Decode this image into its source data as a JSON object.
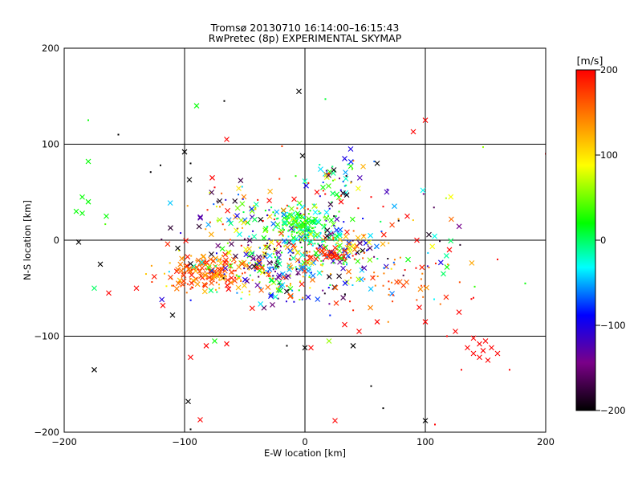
{
  "chart_data": {
    "type": "scatter",
    "title": "Tromsø 20130710 16:14:00–16:15:43",
    "subtitle": "RwPretec (8p) EXPERIMENTAL SKYMAP",
    "xlabel": "E-W location [km]",
    "ylabel": "N-S location [km]",
    "xlim": [
      -200,
      200
    ],
    "ylim": [
      -200,
      200
    ],
    "xticks": [
      -200,
      -100,
      0,
      100,
      200
    ],
    "yticks": [
      -200,
      -100,
      0,
      100,
      200
    ],
    "grid": true,
    "colorbar": {
      "label": "[m/s]",
      "range": [
        -200,
        200
      ],
      "ticks": [
        200,
        100,
        0,
        -100,
        -200
      ],
      "colormap": [
        "#000000",
        "#7a0088",
        "#0000ff",
        "#00ffff",
        "#00ff00",
        "#ffff00",
        "#ff8000",
        "#ff0000"
      ]
    },
    "markers": [
      "x",
      "dot"
    ],
    "points": [
      {
        "x": -5,
        "y": 155,
        "v": -200,
        "m": "x"
      },
      {
        "x": -90,
        "y": 140,
        "v": 20,
        "m": "x"
      },
      {
        "x": -67,
        "y": 145,
        "v": -200,
        "m": "dot"
      },
      {
        "x": 100,
        "y": 125,
        "v": 200,
        "m": "x"
      },
      {
        "x": 90,
        "y": 113,
        "v": 200,
        "m": "x"
      },
      {
        "x": 17,
        "y": 147,
        "v": 10,
        "m": "dot"
      },
      {
        "x": -180,
        "y": 125,
        "v": 20,
        "m": "dot"
      },
      {
        "x": -65,
        "y": 105,
        "v": 200,
        "m": "x"
      },
      {
        "x": -155,
        "y": 110,
        "v": -200,
        "m": "dot"
      },
      {
        "x": -100,
        "y": 92,
        "v": -200,
        "m": "x"
      },
      {
        "x": -2,
        "y": 88,
        "v": -200,
        "m": "x"
      },
      {
        "x": -180,
        "y": 82,
        "v": 20,
        "m": "x"
      },
      {
        "x": 60,
        "y": 80,
        "v": -200,
        "m": "x"
      },
      {
        "x": 38,
        "y": 95,
        "v": -100,
        "m": "x"
      },
      {
        "x": 33,
        "y": 85,
        "v": -100,
        "m": "x"
      },
      {
        "x": -95,
        "y": 80,
        "v": -200,
        "m": "dot"
      },
      {
        "x": -120,
        "y": 78,
        "v": -200,
        "m": "dot"
      },
      {
        "x": -96,
        "y": 63,
        "v": -200,
        "m": "x"
      },
      {
        "x": -77,
        "y": 65,
        "v": 200,
        "m": "x"
      },
      {
        "x": -185,
        "y": 45,
        "v": 20,
        "m": "x"
      },
      {
        "x": -180,
        "y": 40,
        "v": 20,
        "m": "x"
      },
      {
        "x": -190,
        "y": 30,
        "v": 20,
        "m": "x"
      },
      {
        "x": -185,
        "y": 28,
        "v": 20,
        "m": "x"
      },
      {
        "x": -165,
        "y": 25,
        "v": 20,
        "m": "x"
      },
      {
        "x": 98,
        "y": 52,
        "v": -30,
        "m": "x"
      },
      {
        "x": 85,
        "y": 25,
        "v": 200,
        "m": "x"
      },
      {
        "x": -188,
        "y": -2,
        "v": -200,
        "m": "x"
      },
      {
        "x": -170,
        "y": -25,
        "v": -200,
        "m": "x"
      },
      {
        "x": 93,
        "y": 0,
        "v": 200,
        "m": "x"
      },
      {
        "x": 120,
        "y": -10,
        "v": 200,
        "m": "x"
      },
      {
        "x": 118,
        "y": -28,
        "v": 20,
        "m": "x"
      },
      {
        "x": 115,
        "y": -35,
        "v": 0,
        "m": "x"
      },
      {
        "x": -175,
        "y": -50,
        "v": 0,
        "m": "x"
      },
      {
        "x": -163,
        "y": -55,
        "v": 200,
        "m": "x"
      },
      {
        "x": -140,
        "y": -50,
        "v": 200,
        "m": "x"
      },
      {
        "x": -118,
        "y": -68,
        "v": 200,
        "m": "x"
      },
      {
        "x": -110,
        "y": -78,
        "v": -200,
        "m": "x"
      },
      {
        "x": 95,
        "y": -70,
        "v": 200,
        "m": "x"
      },
      {
        "x": 128,
        "y": -75,
        "v": 200,
        "m": "x"
      },
      {
        "x": 100,
        "y": -85,
        "v": 200,
        "m": "x"
      },
      {
        "x": 125,
        "y": -95,
        "v": 200,
        "m": "x"
      },
      {
        "x": 140,
        "y": -102,
        "v": 200,
        "m": "x"
      },
      {
        "x": 145,
        "y": -108,
        "v": 200,
        "m": "x"
      },
      {
        "x": 150,
        "y": -105,
        "v": 200,
        "m": "x"
      },
      {
        "x": 135,
        "y": -112,
        "v": 200,
        "m": "x"
      },
      {
        "x": 148,
        "y": -115,
        "v": 200,
        "m": "x"
      },
      {
        "x": 155,
        "y": -112,
        "v": 200,
        "m": "x"
      },
      {
        "x": 160,
        "y": -118,
        "v": 200,
        "m": "x"
      },
      {
        "x": 140,
        "y": -118,
        "v": 200,
        "m": "x"
      },
      {
        "x": 145,
        "y": -122,
        "v": 200,
        "m": "x"
      },
      {
        "x": 152,
        "y": -125,
        "v": 200,
        "m": "x"
      },
      {
        "x": 130,
        "y": -135,
        "v": 200,
        "m": "dot"
      },
      {
        "x": 170,
        "y": -135,
        "v": 200,
        "m": "dot"
      },
      {
        "x": -95,
        "y": -122,
        "v": 200,
        "m": "x"
      },
      {
        "x": -82,
        "y": -110,
        "v": 200,
        "m": "x"
      },
      {
        "x": -75,
        "y": -105,
        "v": 20,
        "m": "x"
      },
      {
        "x": -65,
        "y": -108,
        "v": 200,
        "m": "x"
      },
      {
        "x": -175,
        "y": -135,
        "v": -200,
        "m": "x"
      },
      {
        "x": -97,
        "y": -168,
        "v": -200,
        "m": "x"
      },
      {
        "x": -87,
        "y": -187,
        "v": 200,
        "m": "x"
      },
      {
        "x": -95,
        "y": -197,
        "v": -200,
        "m": "dot"
      },
      {
        "x": 25,
        "y": -188,
        "v": 200,
        "m": "x"
      },
      {
        "x": 100,
        "y": -188,
        "v": -200,
        "m": "x"
      },
      {
        "x": 108,
        "y": -192,
        "v": 200,
        "m": "dot"
      },
      {
        "x": 65,
        "y": -175,
        "v": -200,
        "m": "dot"
      },
      {
        "x": 55,
        "y": -152,
        "v": -200,
        "m": "dot"
      },
      {
        "x": 5,
        "y": -112,
        "v": 200,
        "m": "x"
      },
      {
        "x": 0,
        "y": -112,
        "v": -200,
        "m": "x"
      },
      {
        "x": -15,
        "y": -110,
        "v": -200,
        "m": "dot"
      },
      {
        "x": 20,
        "y": -105,
        "v": 60,
        "m": "x"
      },
      {
        "x": 40,
        "y": -110,
        "v": -200,
        "m": "x"
      },
      {
        "x": 33,
        "y": -88,
        "v": 200,
        "m": "x"
      },
      {
        "x": 45,
        "y": -95,
        "v": 200,
        "m": "x"
      },
      {
        "x": 60,
        "y": -85,
        "v": 200,
        "m": "x"
      },
      {
        "x": 118,
        "y": -100,
        "v": 200,
        "m": "dot"
      },
      {
        "x": 183,
        "y": -45,
        "v": 20,
        "m": "dot"
      },
      {
        "x": 200,
        "y": 90,
        "v": 200,
        "m": "dot"
      },
      {
        "x": 148,
        "y": 97,
        "v": 60,
        "m": "dot"
      },
      {
        "x": 160,
        "y": -20,
        "v": 200,
        "m": "dot"
      },
      {
        "x": 140,
        "y": -60,
        "v": 200,
        "m": "dot"
      },
      {
        "x": -55,
        "y": 54,
        "v": 100,
        "m": "x"
      },
      {
        "x": -75,
        "y": 55,
        "v": 200,
        "m": "dot"
      },
      {
        "x": 15,
        "y": 55,
        "v": 20,
        "m": "x"
      },
      {
        "x": 10,
        "y": 50,
        "v": 200,
        "m": "x"
      },
      {
        "x": 30,
        "y": 40,
        "v": 200,
        "m": "x"
      },
      {
        "x": 55,
        "y": 45,
        "v": 200,
        "m": "dot"
      },
      {
        "x": 65,
        "y": 35,
        "v": 200,
        "m": "dot"
      }
    ],
    "clusters": [
      {
        "cx": -80,
        "cy": -35,
        "rx": 30,
        "ry": 15,
        "n": 170,
        "v": [
          110,
          200
        ]
      },
      {
        "cx": -30,
        "cy": -20,
        "rx": 40,
        "ry": 22,
        "n": 160,
        "v": [
          -200,
          200
        ]
      },
      {
        "cx": 0,
        "cy": 15,
        "rx": 22,
        "ry": 15,
        "n": 170,
        "v": [
          -40,
          60
        ]
      },
      {
        "cx": 30,
        "cy": -10,
        "rx": 30,
        "ry": 18,
        "n": 90,
        "v": [
          -200,
          200
        ]
      },
      {
        "cx": 25,
        "cy": -15,
        "rx": 12,
        "ry": 5,
        "n": 45,
        "v": [
          160,
          200
        ]
      },
      {
        "cx": -10,
        "cy": -45,
        "rx": 35,
        "ry": 18,
        "n": 90,
        "v": [
          -200,
          200
        ]
      },
      {
        "cx": 0,
        "cy": 0,
        "rx": 110,
        "ry": 60,
        "n": 210,
        "v": [
          -200,
          200
        ]
      },
      {
        "cx": 30,
        "cy": 65,
        "rx": 20,
        "ry": 18,
        "n": 35,
        "v": [
          -200,
          200
        ]
      },
      {
        "cx": -40,
        "cy": 30,
        "rx": 50,
        "ry": 20,
        "n": 50,
        "v": [
          -200,
          200
        ]
      },
      {
        "cx": 80,
        "cy": -45,
        "rx": 40,
        "ry": 25,
        "n": 40,
        "v": [
          120,
          200
        ]
      }
    ]
  }
}
